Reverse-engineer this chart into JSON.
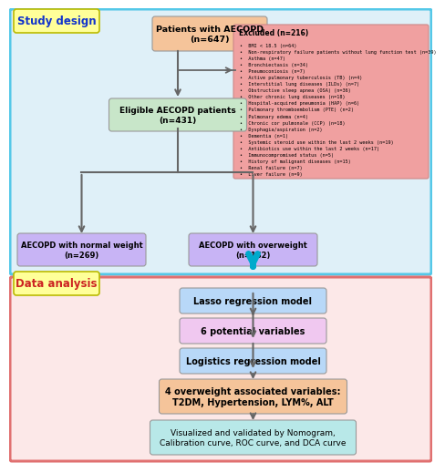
{
  "study_design_bg": "#dff0f8",
  "study_design_border": "#55c8e8",
  "data_analysis_bg": "#fce8e8",
  "data_analysis_border": "#e07070",
  "study_design_label": "Study design",
  "data_analysis_label": "Data analysis",
  "study_label_bg": "#ffff99",
  "data_label_bg": "#ffff99",
  "box_patients_text": "Patients with AECOPD\n(n=647)",
  "box_patients_color": "#f5c49a",
  "box_eligible_text": "Eligible AECOPD patients\n(n=431)",
  "box_eligible_color": "#c8e6c9",
  "box_normal_text": "AECOPD with normal weight\n(n=269)",
  "box_normal_color": "#c8b4f5",
  "box_overweight_text": "AECOPD with overweight\n(n=162)",
  "box_overweight_color": "#c8b4f5",
  "excluded_title": "Excluded (n=216)",
  "excluded_items": [
    "BMI < 18.5 (n=64)",
    "Non-respiratory failure patients without lung function test (n=39)",
    "Asthma (n=47)",
    "Bronchiectasis (n=34)",
    "Pneumoconiosis (n=7)",
    "Active pulmonary tuberculosis (TB) (n=4)",
    "Interstitial lung diseases (ILDs) (n=7)",
    "Obstructive sleep apnea (OSA) (n=36)",
    "Other chronic lung diseases (n=18)",
    "Hospital-acquired pneumonia (HAP) (n=6)",
    "Pulmonary thromboembolism (PTE) (n=2)",
    "Pulmonary edema (n=4)",
    "Chronic cor pulmonale (CCP) (n=18)",
    "Dysphagia/aspiration (n=2)",
    "Dementia (n=1)",
    "Systemic steroid use within the last 2 weeks (n=19)",
    "Antibiotics use within the last 2 weeks (n=17)",
    "Immunocompromised status (n=5)",
    "History of malignant diseases (n=15)",
    "Renal failure (n=7)",
    "Liver failure (n=9)"
  ],
  "excluded_bg": "#f0a0a0",
  "box_lasso_text": "Lasso regression model",
  "box_lasso_color": "#b8d8f8",
  "box_6vars_text": "6 potential variables",
  "box_6vars_color": "#f0c8f0",
  "box_logistic_text": "Logistics regression model",
  "box_logistic_color": "#b8d8f8",
  "box_4vars_text": "4 overweight associated variables:\nT2DM, Hypertension, LYM%, ALT",
  "box_4vars_color": "#f5c49a",
  "box_visualized_text": "Visualized and validated by Nomogram,\nCalibration curve, ROC curve, and DCA curve",
  "box_visualized_color": "#b8e8e8",
  "arrow_color": "#666666",
  "cyan_arrow_color": "#00aacc"
}
